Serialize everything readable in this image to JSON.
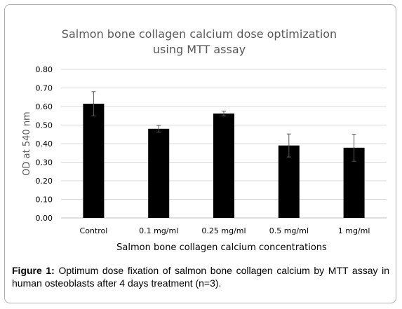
{
  "chart_data": {
    "type": "bar",
    "title_line1": "Salmon bone collagen calcium dose optimization",
    "title_line2": "using MTT assay",
    "xlabel": "Salmon bone collagen calcium concentrations",
    "ylabel": "OD at 540 nm",
    "categories": [
      "Control",
      "0.1 mg/ml",
      "0.25 mg/ml",
      "0.5 mg/ml",
      "1 mg/ml"
    ],
    "values": [
      0.615,
      0.48,
      0.562,
      0.39,
      0.378
    ],
    "errors": [
      0.065,
      0.018,
      0.013,
      0.062,
      0.073
    ],
    "ylim": [
      0,
      0.8
    ],
    "yticks": [
      "0.00",
      "0.10",
      "0.20",
      "0.30",
      "0.40",
      "0.50",
      "0.60",
      "0.70",
      "0.80"
    ],
    "grid": true,
    "bar_color": "#000000",
    "grid_color": "#d9d9d9"
  },
  "caption": {
    "label": "Figure 1:",
    "text": " Optimum dose fixation of salmon bone collagen calcium by MTT assay in human osteoblasts after 4 days treatment (n=3)."
  }
}
